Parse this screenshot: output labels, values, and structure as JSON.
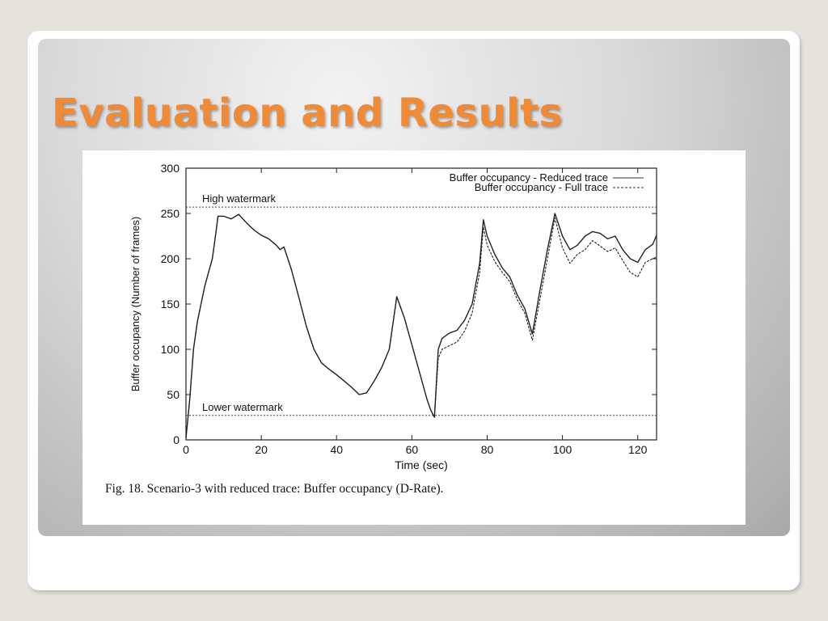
{
  "slide": {
    "title": "Evaluation and Results",
    "caption": "Fig. 18.   Scenario-3 with reduced trace: Buffer occupancy (D-Rate)."
  },
  "colors": {
    "title": "#f08a35",
    "panel_light": "#f2f2f2",
    "panel_dark": "#a9a9a9",
    "series": "#222222"
  },
  "chart_data": {
    "type": "line",
    "xlabel": "Time (sec)",
    "ylabel": "Buffer occupancy (Number of frames)",
    "xlim": [
      0,
      125
    ],
    "ylim": [
      0,
      300
    ],
    "xticks": [
      0,
      20,
      40,
      60,
      80,
      100,
      120
    ],
    "yticks": [
      0,
      50,
      100,
      150,
      200,
      250,
      300
    ],
    "grid": false,
    "legend_position": "top-right",
    "annotations": [
      {
        "text": "High watermark",
        "y": 257
      },
      {
        "text": "Lower watermark",
        "y": 27
      }
    ],
    "series": [
      {
        "name": "Buffer occupancy - Reduced trace",
        "style": "solid",
        "x": [
          0,
          1,
          2,
          3,
          4,
          5,
          6,
          7,
          8,
          8.5,
          10,
          12,
          14,
          16,
          18,
          20,
          22,
          24,
          25,
          26,
          28,
          30,
          32,
          34,
          36,
          38,
          40,
          42,
          44,
          46,
          48,
          50,
          52,
          54,
          56,
          58,
          60,
          62,
          64,
          65,
          66,
          67,
          68,
          70,
          72,
          74,
          76,
          78,
          79,
          80,
          82,
          84,
          86,
          88,
          90,
          92,
          94,
          96,
          98,
          100,
          102,
          104,
          106,
          108,
          110,
          112,
          114,
          116,
          118,
          120,
          122,
          124,
          125
        ],
        "y": [
          2,
          45,
          100,
          130,
          150,
          170,
          185,
          200,
          230,
          247,
          247,
          244,
          249,
          240,
          232,
          226,
          222,
          215,
          210,
          213,
          188,
          157,
          125,
          100,
          85,
          78,
          72,
          65,
          58,
          50,
          52,
          65,
          80,
          100,
          158,
          135,
          105,
          75,
          45,
          33,
          25,
          100,
          112,
          118,
          121,
          132,
          150,
          195,
          243,
          225,
          205,
          190,
          180,
          160,
          145,
          117,
          165,
          210,
          250,
          225,
          210,
          215,
          225,
          230,
          228,
          222,
          225,
          210,
          200,
          196,
          210,
          216,
          226
        ]
      },
      {
        "name": "Buffer occupancy - Full trace",
        "style": "dashed",
        "x": [
          0,
          1,
          2,
          3,
          4,
          5,
          6,
          7,
          8,
          8.5,
          10,
          12,
          14,
          16,
          18,
          20,
          22,
          24,
          25,
          26,
          28,
          30,
          32,
          34,
          36,
          38,
          40,
          42,
          44,
          46,
          48,
          50,
          52,
          54,
          56,
          58,
          60,
          62,
          64,
          65,
          66,
          67,
          68,
          70,
          72,
          74,
          76,
          78,
          79,
          80,
          82,
          84,
          86,
          88,
          90,
          92,
          94,
          96,
          98,
          100,
          102,
          104,
          106,
          108,
          110,
          112,
          114,
          116,
          118,
          120,
          122,
          124,
          125
        ],
        "y": [
          2,
          45,
          100,
          130,
          150,
          170,
          185,
          200,
          230,
          247,
          247,
          244,
          249,
          240,
          232,
          226,
          222,
          215,
          210,
          213,
          188,
          157,
          125,
          100,
          85,
          78,
          72,
          65,
          58,
          50,
          52,
          65,
          80,
          100,
          158,
          135,
          105,
          75,
          45,
          33,
          25,
          90,
          100,
          104,
          108,
          120,
          140,
          185,
          235,
          215,
          197,
          185,
          175,
          155,
          140,
          110,
          155,
          200,
          245,
          212,
          195,
          205,
          210,
          220,
          214,
          208,
          212,
          198,
          185,
          180,
          196,
          200,
          202
        ]
      }
    ]
  }
}
